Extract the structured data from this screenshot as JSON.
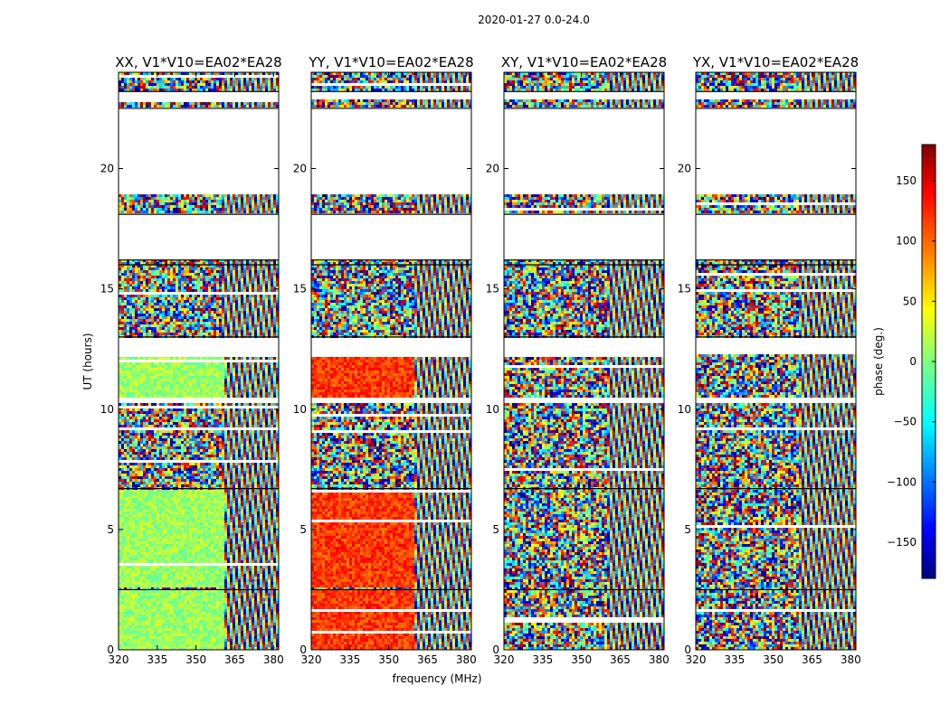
{
  "chart_data": {
    "type": "heatmap",
    "suptitle": "2020-01-27 0.0-24.0",
    "xlabel": "frequency (MHz)",
    "ylabel": "UT (hours)",
    "xlim": [
      320,
      382
    ],
    "ylim": [
      0,
      24
    ],
    "xticks": [
      320,
      335,
      350,
      365,
      380
    ],
    "yticks": [
      0,
      5,
      10,
      15,
      20
    ],
    "colorbar": {
      "label": "phase (deg.)",
      "range": [
        -180,
        180
      ],
      "ticks": [
        150,
        100,
        50,
        0,
        -50,
        -100,
        -150
      ],
      "colormap": "jet",
      "colors": [
        "#00007f",
        "#0000ff",
        "#007fff",
        "#00ffff",
        "#7fff7f",
        "#ffff00",
        "#ff7f00",
        "#ff0000",
        "#7f0000"
      ]
    },
    "panels": [
      {
        "title": "XX, V1*V10=EA02*EA28",
        "mean_phase": 10,
        "coherent_freq_max": 361
      },
      {
        "title": "YY, V1*V10=EA02*EA28",
        "mean_phase": 115,
        "coherent_freq_max": 360
      },
      {
        "title": "XY, V1*V10=EA02*EA28",
        "mean_phase": null,
        "coherent_freq_max": 0
      },
      {
        "title": "YX, V1*V10=EA02*EA28",
        "mean_phase": null,
        "coherent_freq_max": 0
      }
    ],
    "flagged_ut_ranges": [
      [
        12.3,
        13.0
      ],
      [
        10.3,
        10.5
      ],
      [
        16.2,
        18.1
      ],
      [
        18.9,
        22.5
      ],
      [
        22.9,
        23.2
      ]
    ],
    "data_ut_ranges": [
      [
        0,
        2.5
      ],
      [
        2.5,
        6.7
      ],
      [
        6.7,
        10.3
      ],
      [
        10.5,
        12.3
      ],
      [
        13.0,
        16.2
      ],
      [
        18.1,
        18.9
      ],
      [
        22.5,
        22.9
      ],
      [
        23.2,
        24.0
      ]
    ]
  }
}
